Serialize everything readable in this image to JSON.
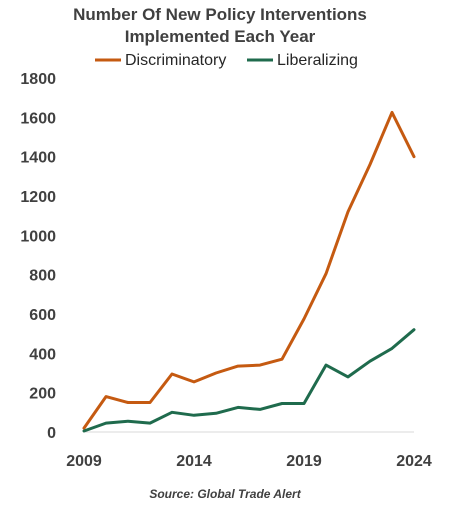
{
  "chart_data": {
    "type": "line",
    "title_line1": "Number Of New Policy Interventions",
    "title_line2": "Implemented Each Year",
    "x": [
      2009,
      2010,
      2011,
      2012,
      2013,
      2014,
      2015,
      2016,
      2017,
      2018,
      2019,
      2020,
      2021,
      2022,
      2023,
      2024
    ],
    "xticks": [
      "2009",
      "2014",
      "2019",
      "2024"
    ],
    "yticks": [
      "0",
      "200",
      "400",
      "600",
      "800",
      "1000",
      "1200",
      "1400",
      "1600",
      "1800"
    ],
    "ylim": [
      0,
      1800
    ],
    "grid": false,
    "legend_position": "top",
    "series": [
      {
        "name": "Discriminatory",
        "color": "#C55A11",
        "values": [
          20,
          180,
          150,
          150,
          295,
          255,
          300,
          335,
          340,
          370,
          575,
          805,
          1120,
          1360,
          1625,
          1400
        ]
      },
      {
        "name": "Liberalizing",
        "color": "#1F6B4D",
        "values": [
          5,
          45,
          55,
          45,
          100,
          85,
          95,
          125,
          115,
          145,
          145,
          340,
          280,
          360,
          425,
          520
        ]
      }
    ],
    "source": "Source: Global Trade Alert"
  }
}
